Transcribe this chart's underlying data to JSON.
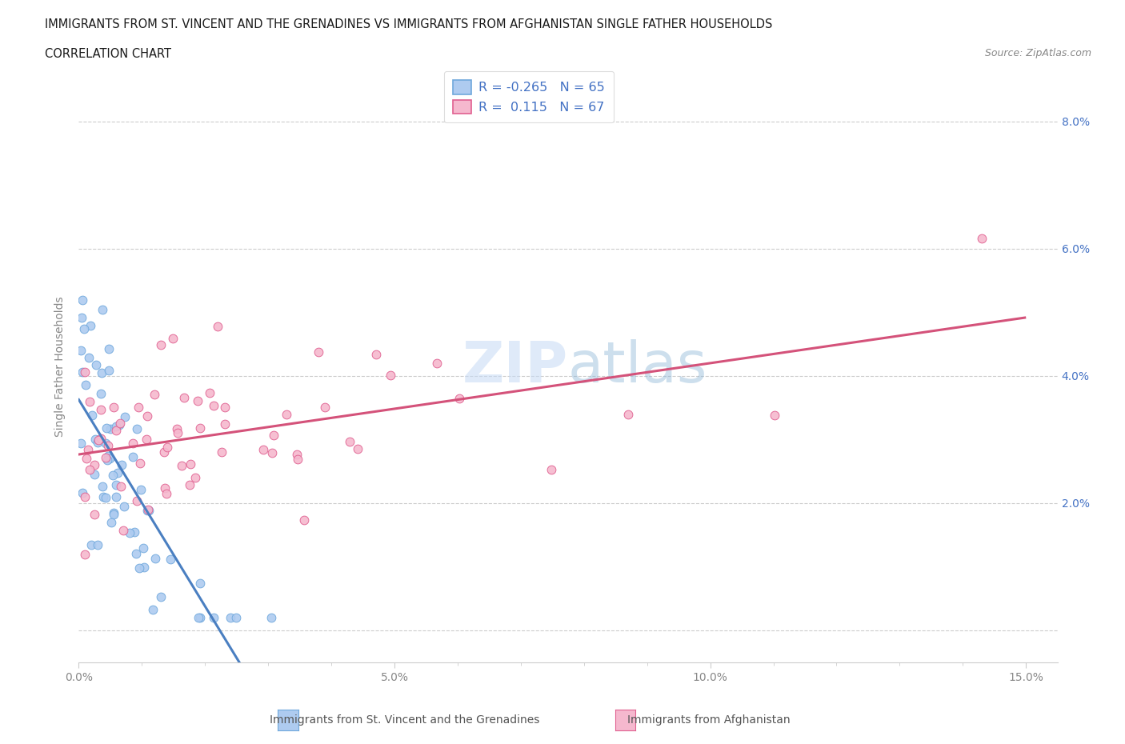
{
  "title_line1": "IMMIGRANTS FROM ST. VINCENT AND THE GRENADINES VS IMMIGRANTS FROM AFGHANISTAN SINGLE FATHER HOUSEHOLDS",
  "title_line2": "CORRELATION CHART",
  "source": "Source: ZipAtlas.com",
  "ylabel": "Single Father Households",
  "xlim": [
    0.0,
    0.155
  ],
  "ylim": [
    -0.005,
    0.088
  ],
  "xticks": [
    0.0,
    0.05,
    0.1,
    0.15
  ],
  "xtick_labels": [
    "0.0%",
    "5.0%",
    "10.0%",
    "15.0%"
  ],
  "yticks": [
    0.0,
    0.02,
    0.04,
    0.06,
    0.08
  ],
  "ytick_labels": [
    "",
    "2.0%",
    "4.0%",
    "6.0%",
    "8.0%"
  ],
  "color_blue": "#aecbf0",
  "color_pink": "#f5b8ce",
  "edge_blue": "#6fa8dc",
  "edge_pink": "#e06090",
  "regline_blue": "#4a7fc1",
  "regline_pink": "#d4527a",
  "regline_blue_dashed": "#b0c8e8",
  "R_blue": -0.265,
  "N_blue": 65,
  "R_pink": 0.115,
  "N_pink": 67,
  "legend_label_blue": "Immigrants from St. Vincent and the Grenadines",
  "legend_label_pink": "Immigrants from Afghanistan",
  "watermark_zip": "ZIP",
  "watermark_atlas": "atlas",
  "grid_color": "#cccccc",
  "background_color": "#ffffff",
  "tick_color_blue": "#4472c4",
  "tick_color_gray": "#888888"
}
